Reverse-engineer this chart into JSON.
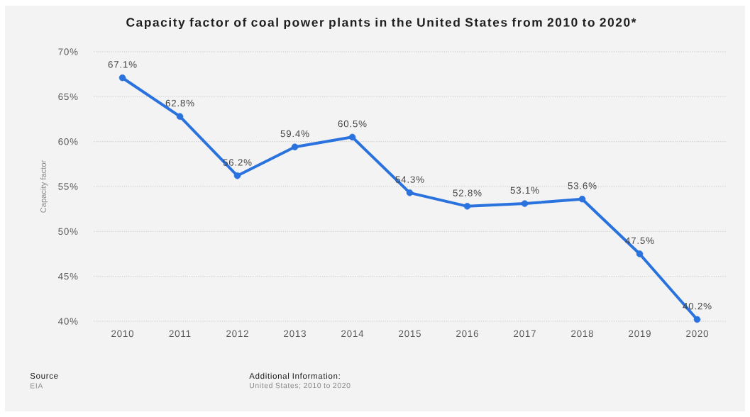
{
  "chart_data": {
    "type": "line",
    "title": "Capacity factor of coal power plants in the United States from 2010 to 2020*",
    "ylabel": "Capacity factor",
    "categories": [
      "2010",
      "2011",
      "2012",
      "2013",
      "2014",
      "2015",
      "2016",
      "2017",
      "2018",
      "2019",
      "2020"
    ],
    "values": [
      67.1,
      62.8,
      56.2,
      59.4,
      60.5,
      54.3,
      52.8,
      53.1,
      53.6,
      47.5,
      40.2
    ],
    "value_labels": [
      "67.1%",
      "62.8%",
      "56.2%",
      "59.4%",
      "60.5%",
      "54.3%",
      "52.8%",
      "53.1%",
      "53.6%",
      "47.5%",
      "40.2%"
    ],
    "color": "#2a72de",
    "marker": "circle",
    "line_style": "solid",
    "grid": "y",
    "ylim": [
      40,
      70
    ],
    "yticks": [
      {
        "value": 40,
        "label": "40%"
      },
      {
        "value": 45,
        "label": "45%"
      },
      {
        "value": 50,
        "label": "50%"
      },
      {
        "value": 55,
        "label": "55%"
      },
      {
        "value": 60,
        "label": "60%"
      },
      {
        "value": 65,
        "label": "65%"
      },
      {
        "value": 70,
        "label": "70%"
      }
    ],
    "annotations": [
      "Source",
      "EIA",
      "Additional Information:",
      "United States; 2010 to 2020"
    ]
  }
}
